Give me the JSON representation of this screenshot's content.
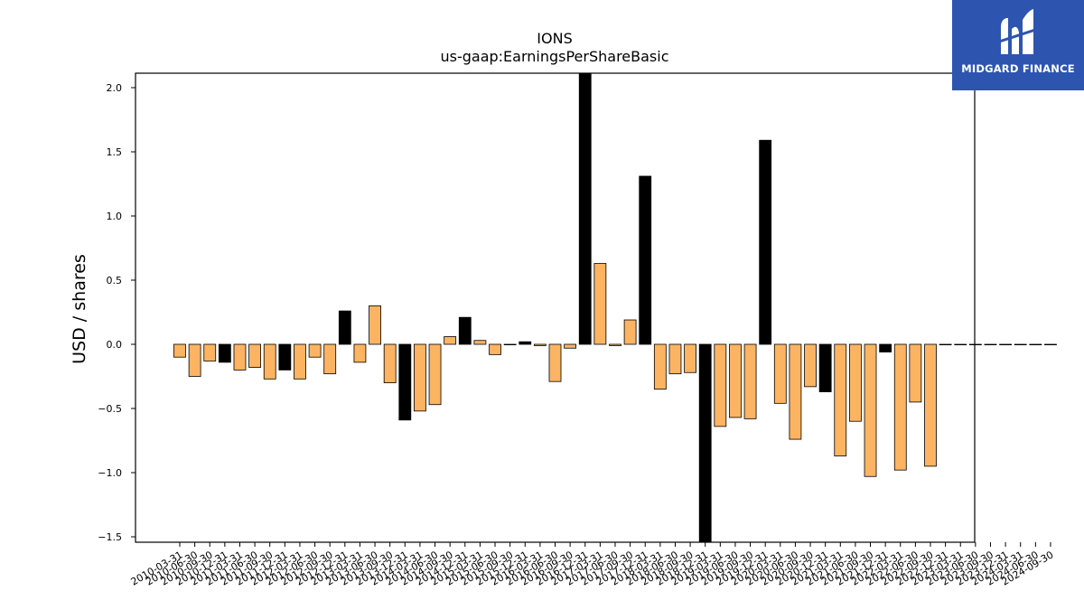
{
  "chart_data": {
    "type": "bar",
    "title": "IONS",
    "subtitle": "us-gaap:EarningsPerShareBasic",
    "xlabel": "",
    "ylabel": "USD / shares",
    "ylim": [
      -1.55,
      2.12
    ],
    "yticks": [
      -1.5,
      -1.0,
      -0.5,
      0.0,
      0.5,
      1.0,
      1.5,
      2.0
    ],
    "ytick_labels": [
      "−1.5",
      "−1.0",
      "−0.5",
      "0.0",
      "0.5",
      "1.0",
      "1.5",
      "2.0"
    ],
    "grid": false,
    "colors": {
      "quarterly": "#fdb462",
      "annual": "#000000",
      "edge": "#000000"
    },
    "categories": [
      "2010-03-31",
      "2010-06-30",
      "2010-09-30",
      "2010-12-31",
      "2011-03-31",
      "2011-06-30",
      "2011-09-30",
      "2011-12-31",
      "2012-03-31",
      "2012-06-30",
      "2012-09-30",
      "2012-12-31",
      "2013-03-31",
      "2013-06-30",
      "2013-09-30",
      "2013-12-31",
      "2014-03-31",
      "2014-06-30",
      "2014-09-30",
      "2014-12-31",
      "2015-03-31",
      "2015-06-30",
      "2015-09-30",
      "2015-12-31",
      "2016-03-31",
      "2016-06-30",
      "2016-09-30",
      "2016-12-31",
      "2017-03-31",
      "2017-06-30",
      "2017-09-30",
      "2017-12-31",
      "2018-03-31",
      "2018-06-30",
      "2018-09-30",
      "2018-12-31",
      "2019-03-31",
      "2019-06-30",
      "2019-09-30",
      "2019-12-31",
      "2020-03-31",
      "2020-06-30",
      "2020-09-30",
      "2020-12-31",
      "2021-03-31",
      "2021-06-30",
      "2021-09-30",
      "2021-12-31",
      "2022-03-31",
      "2022-06-30",
      "2022-09-30",
      "2022-12-31",
      "2023-03-31",
      "2023-06-30",
      "2023-09-30",
      "2023-12-31",
      "2024-03-31",
      "2024-06-30",
      "2024-09-30"
    ],
    "tick_labels": [
      "2010-03-31",
      "2010-06-30",
      "2010-09-30",
      "2010-12-31",
      "2011-03-31",
      "2011-06-30",
      "2011-09-30",
      "2011-12-31",
      "2012-03-31",
      "2012-06-30",
      "2012-09-30",
      "2012-12-31",
      "2013-03-31",
      "2013-06-30",
      "2013-09-30",
      "2013-12-31",
      "2014-03-31",
      "2014-06-30",
      "2014-09-30",
      "2014-12-31",
      "2015-03-31",
      "2015-06-30",
      "2015-09-30",
      "2015-12-31",
      "2016-03-31",
      "2016-06-30",
      "2016-09-30",
      "2016-12-31",
      "2017-03-31",
      "2017-06-30",
      "2017-09-30",
      "2017-12-31",
      "2018-03-31",
      "2018-06-30",
      "2018-09-30",
      "2018-12-31",
      "2019-03-31",
      "2019-06-30",
      "2019-09-30",
      "2019-12-31",
      "2020-03-31",
      "2020-06-30",
      "2020-09-30",
      "2020-12-31",
      "2021-03-31",
      "2021-06-30",
      "2021-09-30",
      "2021-12-31",
      "2022-03-31",
      "2022-06-30",
      "2022-09-30",
      "2022-12-31",
      "2023-03-31",
      "2023-06-30",
      "2023-09-30",
      "2023-12-31",
      "2024-03-31",
      "2024-06-30",
      "2024-09-30"
    ],
    "series": [
      {
        "values": [
          -0.1,
          -0.25,
          -0.13,
          -0.14,
          -0.2,
          -0.18,
          -0.27,
          -0.2,
          -0.27,
          -0.1,
          -0.23,
          0.26,
          -0.14,
          0.3,
          -0.3,
          -0.59,
          -0.52,
          -0.47,
          0.06,
          0.21,
          0.03,
          -0.08,
          0.0,
          0.02,
          -0.01,
          -0.29,
          -0.03,
          2.12,
          0.63,
          -0.01,
          0.19,
          1.31,
          -0.35,
          -0.23,
          -0.22,
          -1.55,
          -0.64,
          -0.57,
          -0.58,
          1.59,
          -0.46,
          -0.74,
          -0.33,
          -0.37,
          -0.87,
          -0.6,
          -1.03,
          -0.06,
          -0.98,
          -0.45,
          -0.95,
          0,
          0,
          0,
          0,
          0,
          0,
          0,
          0
        ],
        "annual": [
          false,
          false,
          false,
          true,
          false,
          false,
          false,
          true,
          false,
          false,
          false,
          true,
          false,
          false,
          false,
          true,
          false,
          false,
          false,
          true,
          false,
          false,
          false,
          true,
          false,
          false,
          false,
          true,
          false,
          false,
          false,
          true,
          false,
          false,
          false,
          true,
          false,
          false,
          false,
          true,
          false,
          false,
          false,
          true,
          false,
          false,
          false,
          true,
          false,
          false,
          false,
          true,
          false,
          false,
          false,
          true,
          false,
          false,
          false
        ]
      }
    ]
  },
  "logo": {
    "text": "MIDGARD FINANCE",
    "color": "#2d55b0"
  }
}
